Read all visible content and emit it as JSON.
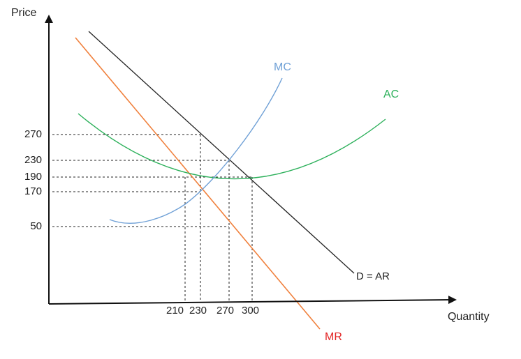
{
  "axes": {
    "y_label": "Price",
    "x_label": "Quantity"
  },
  "price_ticks": [
    "270",
    "230",
    "190",
    "170",
    "50"
  ],
  "quantity_ticks": [
    "210",
    "230",
    "270",
    "300"
  ],
  "curves": {
    "mc": {
      "label": "MC",
      "color": "#6fa0d6"
    },
    "ac": {
      "label": "AC",
      "color": "#2cb05a"
    },
    "demand": {
      "label": "D = AR",
      "color": "#222222"
    },
    "mr": {
      "label": "MR",
      "color": "#f0803c",
      "label_color": "#e32626"
    }
  },
  "colors": {
    "axis": "#111111",
    "guide": "#222222"
  }
}
